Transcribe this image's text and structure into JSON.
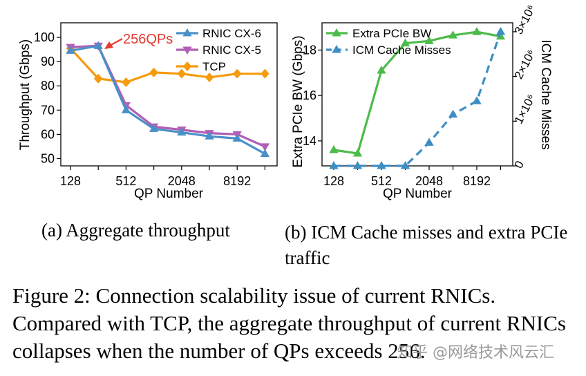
{
  "chart_data": [
    {
      "type": "line",
      "ylabel": "Throughput (Gbps)",
      "xlabel": "QP Number",
      "xtick_labels": [
        "128",
        "512",
        "2048",
        "8192"
      ],
      "yticks": [
        50,
        60,
        70,
        80,
        90,
        100
      ],
      "ylim": [
        47,
        106
      ],
      "x_index": [
        0,
        1,
        2,
        3,
        4,
        5,
        6,
        7
      ],
      "series": [
        {
          "name": "RNIC CX-6",
          "color": "#4a90c8",
          "marker": "triangle",
          "values": [
            94.5,
            96.5,
            70,
            62.3,
            60.8,
            59.2,
            58.3,
            52
          ]
        },
        {
          "name": "RNIC CX-5",
          "color": "#b05fb5",
          "marker": "triangle-down",
          "values": [
            96,
            96.5,
            72,
            63.2,
            61.9,
            60.5,
            60,
            55
          ]
        },
        {
          "name": "TCP",
          "color": "#f59b0c",
          "marker": "diamond",
          "values": [
            95.5,
            83,
            81.5,
            85.5,
            85,
            83.5,
            85,
            85
          ]
        }
      ],
      "annotation": "256QPs",
      "annotation_color": "#e53a2f"
    },
    {
      "type": "line",
      "ylabel": "Extra PCIe BW (Gbps)",
      "y2label": "ICM Cache Misses",
      "xlabel": "QP Number",
      "xtick_labels": [
        "128",
        "512",
        "2048",
        "8192"
      ],
      "yticks": [
        14,
        16,
        18
      ],
      "ylim": [
        12.9,
        19.2
      ],
      "y2ticks": [
        "0",
        "1×10⁶",
        "2×10⁶",
        "3×10⁶"
      ],
      "y2lim": [
        0,
        3.2
      ],
      "x_index": [
        0,
        1,
        2,
        3,
        4,
        5,
        6,
        7
      ],
      "series": [
        {
          "name": "Extra PCIe BW",
          "color": "#4cbb4a",
          "marker": "triangle",
          "axis": "left",
          "values": [
            13.6,
            13.45,
            17.1,
            18.3,
            18.4,
            18.65,
            18.8,
            18.6
          ]
        },
        {
          "name": "ICM Cache Misses",
          "color": "#3d8ec3",
          "marker": "triangle",
          "axis": "right",
          "dashed": true,
          "values": [
            0,
            0,
            0,
            0,
            0.52,
            1.15,
            1.45,
            3.0
          ]
        }
      ]
    }
  ],
  "captions": {
    "a": "(a) Aggregate throughput",
    "b": "(b) ICM Cache misses and extra PCIe traffic",
    "figure": "Figure 2: Connection scalability issue of current RNICs. Compared with TCP, the aggregate throughput of current RNICs collapses when the number of QPs exceeds 256."
  },
  "watermark": "知乎 @网络技术风云汇"
}
